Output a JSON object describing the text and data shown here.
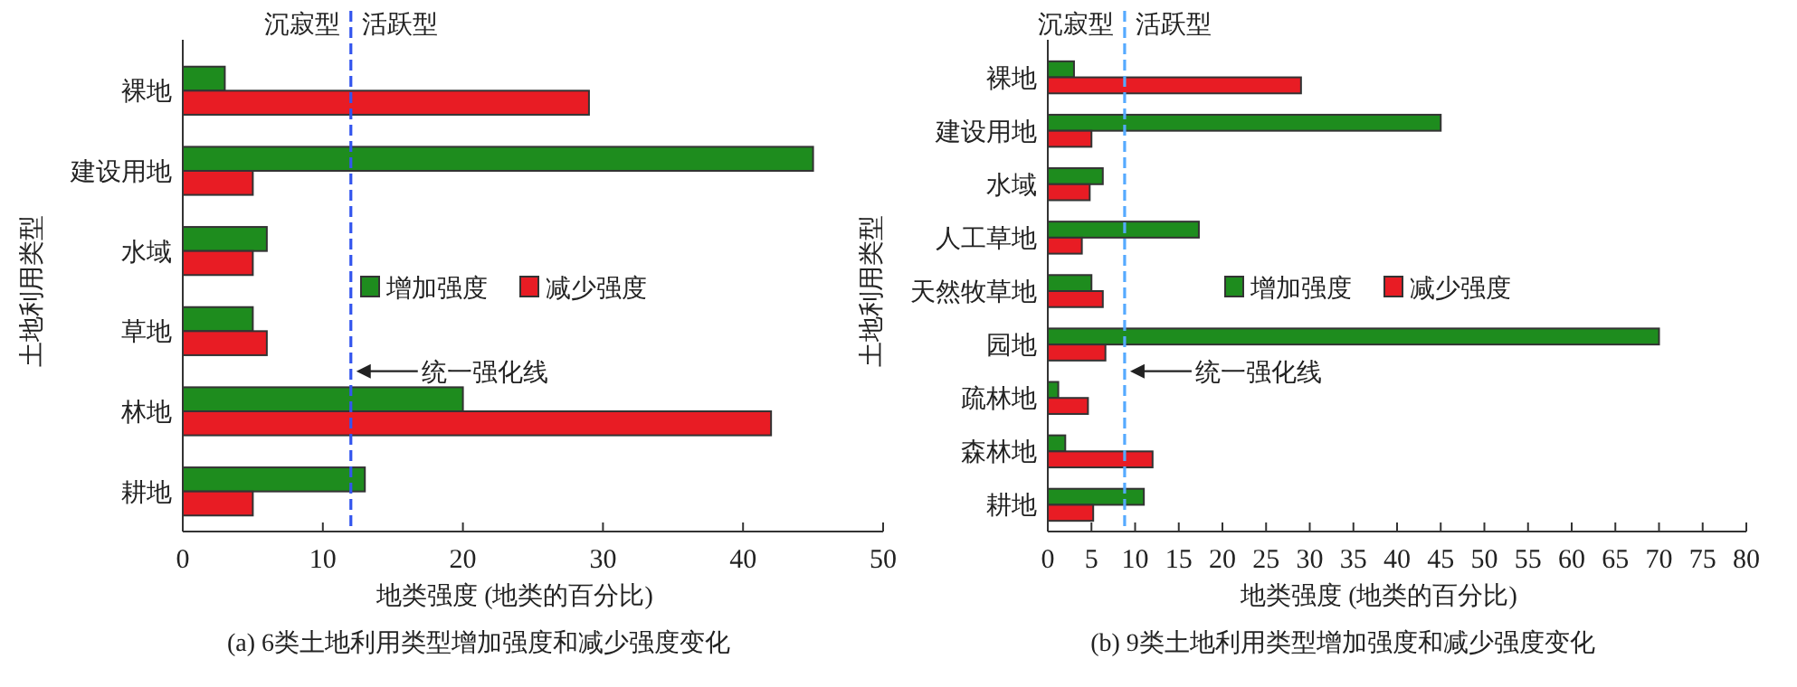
{
  "chart_data": [
    {
      "type": "bar",
      "orientation": "horizontal",
      "categories": [
        "裸地",
        "建设用地",
        "水域",
        "草地",
        "林地",
        "耕地"
      ],
      "series": [
        {
          "name": "增加强度",
          "color": "#1e8c1e",
          "values": [
            3,
            45,
            6,
            5,
            20,
            13
          ]
        },
        {
          "name": "减少强度",
          "color": "#e81c24",
          "values": [
            29,
            5,
            5,
            6,
            42,
            5
          ]
        }
      ],
      "xlim": [
        0,
        50
      ],
      "xticks": [
        0,
        10,
        20,
        30,
        40,
        50
      ],
      "xlabel": "地类强度 (地类的百分比)",
      "ylabel": "土地利用类型",
      "legend": "center",
      "grid": false,
      "ref_lines": [
        {
          "axis": "x",
          "value": 12,
          "color": "#3355ee",
          "line_style": "dashed"
        }
      ],
      "annotations": [
        "沉寂型",
        "活跃型",
        "(a) 6类土地利用类型增加强度和减少强度变化",
        {
          "text": "统一强化线",
          "x": 12,
          "y": "林地"
        }
      ]
    },
    {
      "type": "bar",
      "orientation": "horizontal",
      "categories": [
        "裸地",
        "建设用地",
        "水域",
        "人工草地",
        "天然牧草地",
        "园地",
        "疏林地",
        "森林地",
        "耕地"
      ],
      "series": [
        {
          "name": "增加强度",
          "color": "#1e8c1e",
          "values": [
            3,
            45,
            6.3,
            17.3,
            5,
            70,
            1.2,
            2,
            11
          ]
        },
        {
          "name": "减少强度",
          "color": "#e81c24",
          "values": [
            29,
            5,
            4.8,
            3.9,
            6.3,
            6.6,
            4.6,
            12,
            5.2
          ]
        }
      ],
      "xlim": [
        0,
        80
      ],
      "xticks": [
        0,
        5,
        10,
        15,
        20,
        25,
        30,
        35,
        40,
        45,
        50,
        55,
        60,
        65,
        70,
        75,
        80
      ],
      "xlabel": "地类强度 (地类的百分比)",
      "ylabel": "土地利用类型",
      "legend": "center",
      "grid": false,
      "ref_lines": [
        {
          "axis": "x",
          "value": 8.8,
          "color": "#55aaff",
          "line_style": "dashed"
        }
      ],
      "annotations": [
        "沉寂型",
        "活跃型",
        "(b) 9类土地利用类型增加强度和减少强度变化",
        {
          "text": "统一强化线",
          "x": 8.8,
          "y": "疏林地"
        }
      ]
    }
  ]
}
